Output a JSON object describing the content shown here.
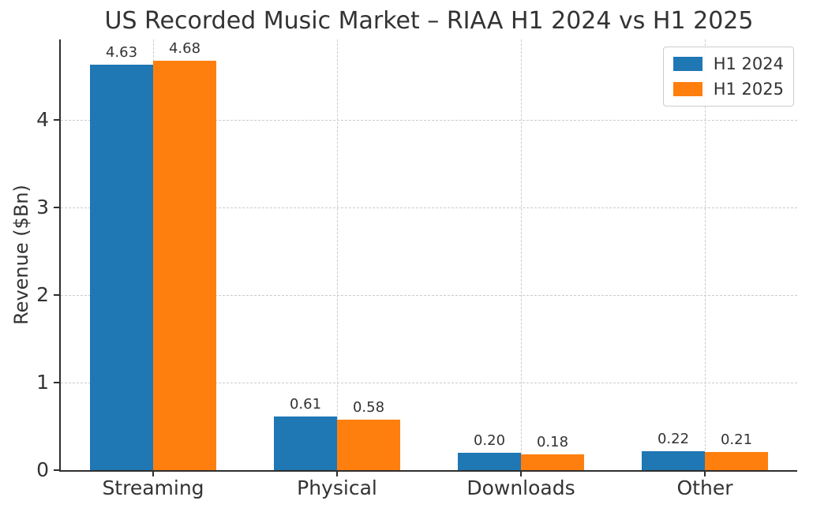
{
  "chart_data": {
    "type": "bar",
    "title": "US Recorded Music Market – RIAA H1 2024 vs H1 2025",
    "xlabel": "",
    "ylabel": "Revenue ($Bn)",
    "categories": [
      "Streaming",
      "Physical",
      "Downloads",
      "Other"
    ],
    "series": [
      {
        "name": "H1 2024",
        "color": "#1f77b4",
        "values": [
          4.63,
          0.61,
          0.2,
          0.22
        ],
        "labels": [
          "4.63",
          "0.61",
          "0.20",
          "0.22"
        ]
      },
      {
        "name": "H1 2025",
        "color": "#ff7f0e",
        "values": [
          4.68,
          0.58,
          0.18,
          0.21
        ],
        "labels": [
          "4.68",
          "0.58",
          "0.18",
          "0.21"
        ]
      }
    ],
    "yticks": [
      0,
      1,
      2,
      3,
      4
    ],
    "ylim": [
      0,
      4.92
    ],
    "grid": {
      "show": true,
      "style": "dashed",
      "color": "#cccccc",
      "axes": "both"
    },
    "legend_position": "upper right",
    "colors": {
      "axis": "#2e2e2e",
      "text": "#333333",
      "background": "#ffffff"
    }
  }
}
